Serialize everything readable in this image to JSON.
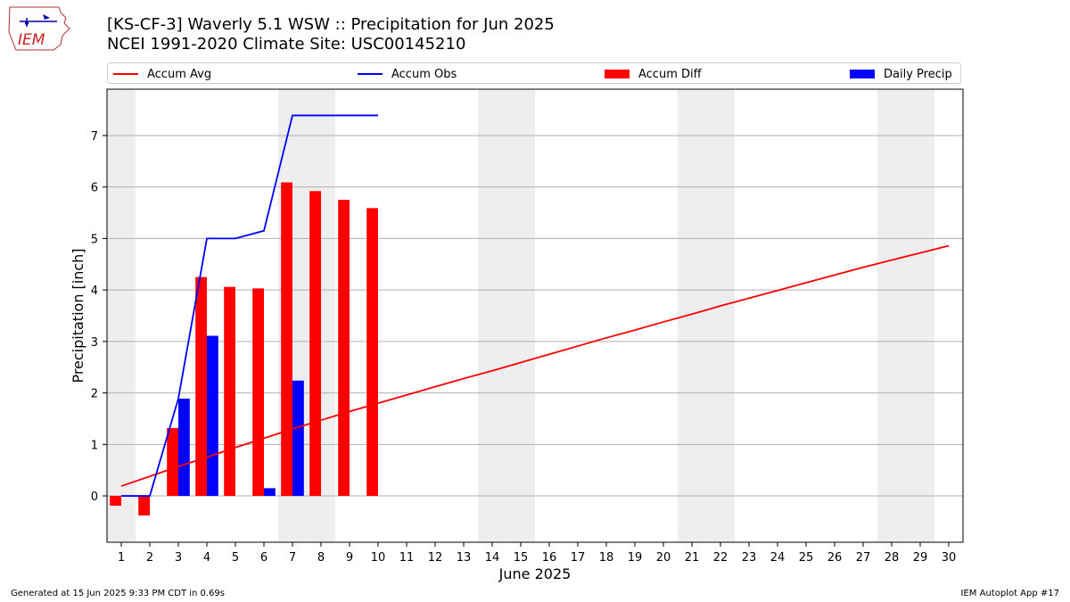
{
  "header": {
    "title_line1": "[KS-CF-3] Waverly 5.1 WSW :: Precipitation for Jun 2025",
    "title_line2": "NCEI 1991-2020 Climate Site: USC00145210",
    "logo_text": "IEM"
  },
  "legend": {
    "items": [
      {
        "label": "Accum Avg",
        "kind": "line",
        "color": "#ff0000"
      },
      {
        "label": "Accum Obs",
        "kind": "line",
        "color": "#0000ff"
      },
      {
        "label": "Accum Diff",
        "kind": "box",
        "color": "#ff0000"
      },
      {
        "label": "Daily Precip",
        "kind": "box",
        "color": "#0000ff"
      }
    ]
  },
  "footer": {
    "generated": "Generated at 15 Jun 2025 9:33 PM CDT in 0.69s",
    "app": "IEM Autoplot App #17"
  },
  "chart_data": {
    "type": "bar",
    "xlabel": "June 2025",
    "ylabel": "Precipitation [inch]",
    "xlim": [
      0.5,
      30.5
    ],
    "ylim": [
      -0.9,
      7.9
    ],
    "x": [
      1,
      2,
      3,
      4,
      5,
      6,
      7,
      8,
      9,
      10,
      11,
      12,
      13,
      14,
      15,
      16,
      17,
      18,
      19,
      20,
      21,
      22,
      23,
      24,
      25,
      26,
      27,
      28,
      29,
      30
    ],
    "yticks": [
      0,
      1,
      2,
      3,
      4,
      5,
      6,
      7
    ],
    "weekend_shading": [
      [
        0.5,
        1.5
      ],
      [
        6.5,
        8.5
      ],
      [
        13.5,
        15.5
      ],
      [
        20.5,
        22.5
      ],
      [
        27.5,
        29.5
      ]
    ],
    "grid": "horizontal",
    "legend_placement": "top",
    "series": [
      {
        "name": "Accum Avg",
        "kind": "line",
        "color": "#ff0000",
        "x": [
          1,
          2,
          3,
          4,
          5,
          6,
          7,
          8,
          9,
          10,
          11,
          12,
          13,
          14,
          15,
          16,
          17,
          18,
          19,
          20,
          21,
          22,
          23,
          24,
          25,
          26,
          27,
          28,
          29,
          30
        ],
        "values": [
          0.19,
          0.38,
          0.57,
          0.75,
          0.94,
          1.12,
          1.3,
          1.47,
          1.64,
          1.8,
          1.96,
          2.12,
          2.28,
          2.43,
          2.59,
          2.75,
          2.91,
          3.07,
          3.22,
          3.38,
          3.53,
          3.69,
          3.84,
          3.99,
          4.14,
          4.29,
          4.44,
          4.58,
          4.72,
          4.86
        ]
      },
      {
        "name": "Accum Obs",
        "kind": "line",
        "color": "#0000ff",
        "x": [
          1,
          2,
          3,
          4,
          5,
          6,
          7,
          8,
          9,
          10
        ],
        "values": [
          0.0,
          0.0,
          1.89,
          5.0,
          5.0,
          5.15,
          7.39,
          7.39,
          7.39,
          7.39
        ]
      },
      {
        "name": "Accum Diff",
        "kind": "bar",
        "color": "#ff0000",
        "x": [
          1,
          2,
          3,
          4,
          5,
          6,
          7,
          8,
          9,
          10
        ],
        "values": [
          -0.19,
          -0.38,
          1.32,
          4.25,
          4.06,
          4.03,
          6.09,
          5.92,
          5.75,
          5.59
        ]
      },
      {
        "name": "Daily Precip",
        "kind": "bar",
        "color": "#0000ff",
        "x": [
          1,
          2,
          3,
          4,
          5,
          6,
          7,
          8,
          9,
          10
        ],
        "values": [
          0.0,
          0.0,
          1.89,
          3.11,
          0.0,
          0.15,
          2.24,
          0.0,
          0.0,
          0.0
        ]
      }
    ]
  }
}
